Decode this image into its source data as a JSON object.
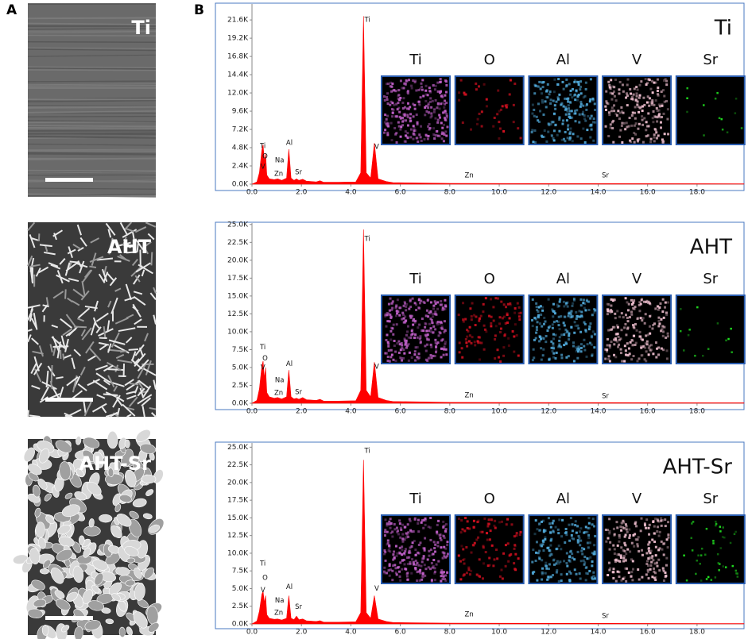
{
  "panel_labels": [
    "A",
    "B"
  ],
  "images": [
    {
      "label": "Ti"
    },
    {
      "label": "AHT"
    },
    {
      "label": "AHT-Sr"
    }
  ],
  "chart_data": [
    {
      "type": "area",
      "title": "Ti",
      "color": "#ff0000",
      "x": [
        0,
        0.2,
        0.3,
        0.4,
        0.45,
        0.5,
        0.55,
        0.6,
        0.7,
        0.9,
        1.04,
        1.2,
        1.4,
        1.49,
        1.58,
        1.7,
        1.8,
        1.9,
        2.05,
        2.2,
        2.6,
        2.75,
        2.9,
        3.5,
        4.2,
        4.4,
        4.51,
        4.62,
        4.8,
        4.95,
        5.1,
        5.43,
        5.7,
        8,
        19.9
      ],
      "values": [
        0,
        300,
        1500,
        4500,
        5200,
        3000,
        4000,
        1200,
        700,
        600,
        700,
        500,
        800,
        4600,
        800,
        500,
        700,
        500,
        650,
        400,
        300,
        450,
        250,
        250,
        300,
        1500,
        22100,
        1500,
        800,
        5400,
        700,
        350,
        200,
        100,
        50
      ],
      "xlim": [
        0,
        19.9
      ],
      "ylim": [
        0,
        23700
      ],
      "xticks": [
        {
          "value": 0,
          "label": "0.0"
        },
        {
          "value": 2,
          "label": "2.0"
        },
        {
          "value": 4,
          "label": "4.0"
        },
        {
          "value": 6,
          "label": "6.0"
        },
        {
          "value": 8,
          "label": "8.0"
        },
        {
          "value": 10,
          "label": "10.0"
        },
        {
          "value": 12,
          "label": "12.0"
        },
        {
          "value": 14,
          "label": "14.0"
        },
        {
          "value": 16,
          "label": "16.0"
        },
        {
          "value": 18,
          "label": "18.0"
        }
      ],
      "yticks": [
        {
          "value": 0,
          "label": "0.0K"
        },
        {
          "value": 2400,
          "label": "2.4K"
        },
        {
          "value": 4800,
          "label": "4.8K"
        },
        {
          "value": 7200,
          "label": "7.2K"
        },
        {
          "value": 9600,
          "label": "9.6K"
        },
        {
          "value": 12000,
          "label": "12.0K"
        },
        {
          "value": 14400,
          "label": "14.4K"
        },
        {
          "value": 16800,
          "label": "16.8K"
        },
        {
          "value": 19200,
          "label": "19.2K"
        },
        {
          "value": 21600,
          "label": "21.6K"
        }
      ],
      "annotations": [
        {
          "label": "Ti",
          "x": 0.32,
          "y": 5000
        },
        {
          "label": "O",
          "x": 0.42,
          "y": 3650
        },
        {
          "label": "V",
          "x": 0.35,
          "y": 2300
        },
        {
          "label": "Na",
          "x": 0.93,
          "y": 3130
        },
        {
          "label": "Zn",
          "x": 0.9,
          "y": 1360
        },
        {
          "label": "Al",
          "x": 1.38,
          "y": 5430
        },
        {
          "label": "Sr",
          "x": 1.74,
          "y": 1570
        },
        {
          "label": "Ti",
          "x": 4.55,
          "y": 21600
        },
        {
          "label": "V",
          "x": 4.95,
          "y": 4900
        },
        {
          "label": "Zn",
          "x": 8.6,
          "y": 1150
        },
        {
          "label": "Sr",
          "x": 14.15,
          "y": 1150
        }
      ],
      "maps": [
        {
          "label": "Ti",
          "color": "#c060c8"
        },
        {
          "label": "O",
          "color": "#d01020"
        },
        {
          "label": "Al",
          "color": "#50a8d8"
        },
        {
          "label": "V",
          "color": "#f0c0d0"
        },
        {
          "label": "Sr",
          "color": "#20e020"
        }
      ]
    },
    {
      "type": "area",
      "title": "AHT",
      "color": "#ff0000",
      "x": [
        0,
        0.2,
        0.3,
        0.4,
        0.45,
        0.5,
        0.55,
        0.6,
        0.7,
        0.9,
        1.04,
        1.2,
        1.4,
        1.49,
        1.58,
        1.7,
        1.8,
        1.9,
        2.05,
        2.2,
        2.6,
        2.75,
        2.9,
        3.5,
        4.2,
        4.4,
        4.51,
        4.62,
        4.8,
        4.95,
        5.1,
        5.43,
        5.7,
        8,
        19.9
      ],
      "values": [
        0,
        400,
        2000,
        5200,
        5900,
        3500,
        5000,
        1500,
        900,
        700,
        800,
        600,
        900,
        4650,
        900,
        600,
        700,
        550,
        800,
        500,
        400,
        550,
        300,
        300,
        350,
        1800,
        24300,
        1800,
        900,
        5750,
        800,
        400,
        250,
        120,
        60
      ],
      "xlim": [
        0,
        19.9
      ],
      "ylim": [
        0,
        25200
      ],
      "xticks": [
        {
          "value": 0,
          "label": "0.0"
        },
        {
          "value": 2,
          "label": "2.0"
        },
        {
          "value": 4,
          "label": "4.0"
        },
        {
          "value": 6,
          "label": "6.0"
        },
        {
          "value": 8,
          "label": "8.0"
        },
        {
          "value": 10,
          "label": "10.0"
        },
        {
          "value": 12,
          "label": "12.0"
        },
        {
          "value": 14,
          "label": "14.0"
        },
        {
          "value": 16,
          "label": "16.0"
        },
        {
          "value": 18,
          "label": "18.0"
        }
      ],
      "yticks": [
        {
          "value": 0,
          "label": "0.0K"
        },
        {
          "value": 2500,
          "label": "2.5K"
        },
        {
          "value": 5000,
          "label": "5.0K"
        },
        {
          "value": 7500,
          "label": "7.5K"
        },
        {
          "value": 10000,
          "label": "10.0K"
        },
        {
          "value": 12500,
          "label": "12.5K"
        },
        {
          "value": 15000,
          "label": "15.0K"
        },
        {
          "value": 17500,
          "label": "17.5K"
        },
        {
          "value": 20000,
          "label": "20.0K"
        },
        {
          "value": 22500,
          "label": "22.5K"
        },
        {
          "value": 25000,
          "label": "25.0K"
        }
      ],
      "annotations": [
        {
          "label": "Ti",
          "x": 0.32,
          "y": 7850
        },
        {
          "label": "O",
          "x": 0.42,
          "y": 6300
        },
        {
          "label": "V",
          "x": 0.35,
          "y": 4980
        },
        {
          "label": "Na",
          "x": 0.93,
          "y": 3200
        },
        {
          "label": "Zn",
          "x": 0.9,
          "y": 1440
        },
        {
          "label": "Al",
          "x": 1.38,
          "y": 5500
        },
        {
          "label": "Sr",
          "x": 1.74,
          "y": 1550
        },
        {
          "label": "Ti",
          "x": 4.55,
          "y": 23000
        },
        {
          "label": "V",
          "x": 4.95,
          "y": 5100
        },
        {
          "label": "Zn",
          "x": 8.6,
          "y": 1100
        },
        {
          "label": "Sr",
          "x": 14.15,
          "y": 1000
        }
      ],
      "maps": [
        {
          "label": "Ti",
          "color": "#c060c8"
        },
        {
          "label": "O",
          "color": "#d01020"
        },
        {
          "label": "Al",
          "color": "#50a8d8"
        },
        {
          "label": "V",
          "color": "#f0c0d0"
        },
        {
          "label": "Sr",
          "color": "#20e020"
        }
      ]
    },
    {
      "type": "area",
      "title": "AHT-Sr",
      "color": "#ff0000",
      "x": [
        0,
        0.2,
        0.3,
        0.4,
        0.45,
        0.5,
        0.55,
        0.6,
        0.7,
        0.9,
        1.04,
        1.2,
        1.4,
        1.49,
        1.58,
        1.7,
        1.8,
        1.9,
        2.05,
        2.2,
        2.6,
        2.75,
        2.9,
        3.5,
        4.2,
        4.4,
        4.51,
        4.62,
        4.8,
        4.95,
        5.1,
        5.43,
        5.7,
        8,
        19.9
      ],
      "values": [
        0,
        400,
        1800,
        4200,
        4600,
        3000,
        4000,
        1300,
        800,
        650,
        700,
        550,
        800,
        4000,
        800,
        600,
        1100,
        600,
        700,
        450,
        350,
        450,
        250,
        250,
        300,
        1600,
        23200,
        1600,
        800,
        4000,
        700,
        350,
        200,
        100,
        50
      ],
      "xlim": [
        0,
        19.9
      ],
      "ylim": [
        0,
        25600
      ],
      "xticks": [
        {
          "value": 0,
          "label": "0.0"
        },
        {
          "value": 2,
          "label": "2.0"
        },
        {
          "value": 4,
          "label": "4.0"
        },
        {
          "value": 6,
          "label": "6.0"
        },
        {
          "value": 8,
          "label": "8.0"
        },
        {
          "value": 10,
          "label": "10.0"
        },
        {
          "value": 12,
          "label": "12.0"
        },
        {
          "value": 14,
          "label": "14.0"
        },
        {
          "value": 16,
          "label": "16.0"
        },
        {
          "value": 18,
          "label": "18.0"
        }
      ],
      "yticks": [
        {
          "value": 0,
          "label": "0.0K"
        },
        {
          "value": 2500,
          "label": "2.5K"
        },
        {
          "value": 5000,
          "label": "5.0K"
        },
        {
          "value": 7500,
          "label": "7.5K"
        },
        {
          "value": 10000,
          "label": "10.0K"
        },
        {
          "value": 12500,
          "label": "12.5K"
        },
        {
          "value": 15000,
          "label": "15.0K"
        },
        {
          "value": 17500,
          "label": "17.5K"
        },
        {
          "value": 20000,
          "label": "20.0K"
        },
        {
          "value": 22500,
          "label": "22.5K"
        },
        {
          "value": 25000,
          "label": "25.0K"
        }
      ],
      "annotations": [
        {
          "label": "Ti",
          "x": 0.32,
          "y": 8560
        },
        {
          "label": "O",
          "x": 0.42,
          "y": 6500
        },
        {
          "label": "V",
          "x": 0.35,
          "y": 4800
        },
        {
          "label": "Na",
          "x": 0.93,
          "y": 3300
        },
        {
          "label": "Zn",
          "x": 0.9,
          "y": 1600
        },
        {
          "label": "Al",
          "x": 1.38,
          "y": 5200
        },
        {
          "label": "Sr",
          "x": 1.74,
          "y": 2400
        },
        {
          "label": "Ti",
          "x": 4.55,
          "y": 24500
        },
        {
          "label": "V",
          "x": 4.95,
          "y": 5000
        },
        {
          "label": "Zn",
          "x": 8.6,
          "y": 1350
        },
        {
          "label": "Sr",
          "x": 14.15,
          "y": 1100
        }
      ],
      "maps": [
        {
          "label": "Ti",
          "color": "#c060c8"
        },
        {
          "label": "O",
          "color": "#d01020"
        },
        {
          "label": "Al",
          "color": "#50a8d8"
        },
        {
          "label": "V",
          "color": "#f0c0d0"
        },
        {
          "label": "Sr",
          "color": "#20e020"
        }
      ]
    }
  ]
}
